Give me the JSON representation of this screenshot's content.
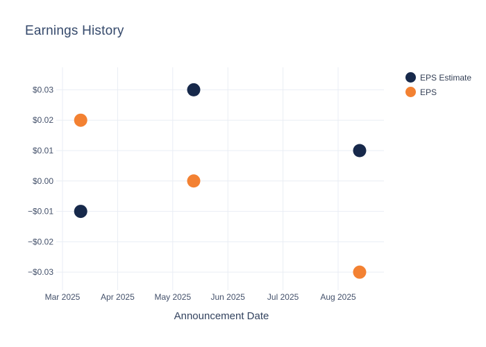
{
  "window": {
    "background": "#ffffff"
  },
  "chart_data": {
    "type": "scatter",
    "title": "Earnings History",
    "xlabel": "Announcement Date",
    "ylabel": "",
    "grid": true,
    "grid_color": "#e9edf4",
    "legend_position": "outside-top-right",
    "x_unit": "months_since_Mar_2025_gridline",
    "xlim": [
      -0.063,
      5.831
    ],
    "ylim": [
      -0.0359,
      0.0374
    ],
    "x_ticks": [
      {
        "label": "Mar 2025",
        "value": 0
      },
      {
        "label": "Apr 2025",
        "value": 1
      },
      {
        "label": "May 2025",
        "value": 2
      },
      {
        "label": "Jun 2025",
        "value": 3
      },
      {
        "label": "Jul 2025",
        "value": 4
      },
      {
        "label": "Aug 2025",
        "value": 5
      }
    ],
    "y_ticks": [
      {
        "label": "$0.03",
        "value": 0.03
      },
      {
        "label": "$0.02",
        "value": 0.02
      },
      {
        "label": "$0.01",
        "value": 0.01
      },
      {
        "label": "$0.00",
        "value": 0.0
      },
      {
        "label": "−$0.01",
        "value": -0.01
      },
      {
        "label": "−$0.02",
        "value": -0.02
      },
      {
        "label": "−$0.03",
        "value": -0.03
      }
    ],
    "series": [
      {
        "name": "EPS Estimate",
        "color": "#17294b",
        "marker_size": 19,
        "points": [
          {
            "x": 0.33,
            "y": -0.01
          },
          {
            "x": 2.38,
            "y": 0.03
          },
          {
            "x": 5.39,
            "y": 0.01
          }
        ]
      },
      {
        "name": "EPS",
        "color": "#f38132",
        "marker_size": 19,
        "points": [
          {
            "x": 0.33,
            "y": 0.02
          },
          {
            "x": 2.38,
            "y": 0.0
          },
          {
            "x": 5.39,
            "y": -0.03
          }
        ]
      }
    ]
  }
}
